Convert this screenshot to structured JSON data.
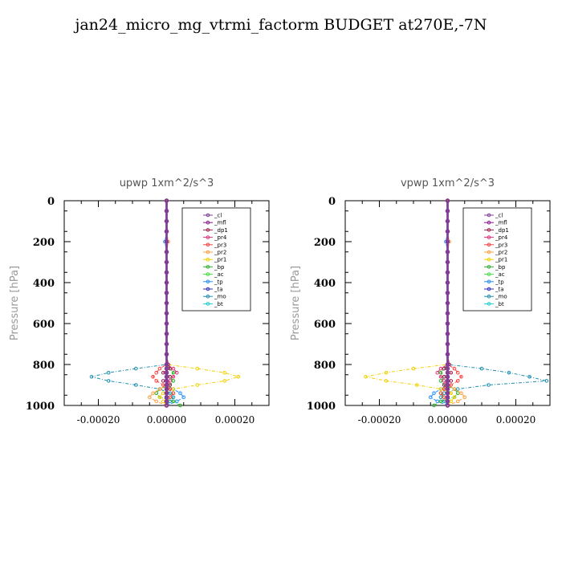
{
  "title": "jan24_micro_mg_vtrmi_factorm  BUDGET at270E,-7N",
  "chart_data": [
    {
      "type": "line",
      "title": "upwp   1xm^2/s^3",
      "ylabel": "Pressure [hPa]",
      "xlabel": "",
      "xlim": [
        -0.0003,
        0.0003
      ],
      "ylim": [
        1000,
        0
      ],
      "xticks": [
        "-0.00020",
        "0.00000",
        "0.00020"
      ],
      "yticks": [
        "0",
        "200",
        "400",
        "600",
        "800",
        "1000"
      ],
      "legend_position": "top-right",
      "y": [
        0,
        50,
        100,
        150,
        200,
        250,
        300,
        350,
        400,
        450,
        500,
        550,
        600,
        650,
        700,
        750,
        800,
        820,
        840,
        860,
        880,
        900,
        920,
        940,
        960,
        980,
        1000
      ],
      "series": [
        {
          "name": "_cl",
          "color": "#7f3f98",
          "values": [
            0,
            0,
            0,
            0,
            0,
            0,
            0,
            0,
            0,
            0,
            0,
            0,
            0,
            0,
            0,
            0,
            0,
            0,
            0,
            0,
            0,
            0,
            0,
            0,
            0,
            0,
            0
          ]
        },
        {
          "name": "_mfl",
          "color": "#8b1a8b",
          "values": [
            0,
            0,
            0,
            0,
            0,
            0,
            0,
            0,
            0,
            0,
            0,
            0,
            0,
            0,
            0,
            0,
            0,
            0,
            0,
            0,
            0,
            0,
            0,
            0,
            0,
            0,
            0
          ]
        },
        {
          "name": "_dp1",
          "color": "#a0204a",
          "values": [
            0,
            0,
            0,
            0,
            0,
            0,
            0,
            0,
            0,
            0,
            0,
            0,
            0,
            0,
            0,
            0,
            5e-06,
            1e-05,
            -1e-05,
            1e-05,
            -1e-05,
            1e-05,
            0,
            0,
            0,
            0,
            0
          ]
        },
        {
          "name": "_pr4",
          "color": "#e0307a",
          "values": [
            0,
            0,
            0,
            0,
            0,
            0,
            0,
            0,
            0,
            0,
            0,
            0,
            0,
            0,
            0,
            0,
            0,
            2e-05,
            3e-05,
            2e-05,
            1e-05,
            0,
            0,
            0,
            0,
            0,
            0
          ]
        },
        {
          "name": "_pr3",
          "color": "#ff4040",
          "values": [
            0,
            0,
            0,
            0,
            0,
            0,
            0,
            0,
            0,
            0,
            0,
            0,
            0,
            0,
            0,
            0,
            0,
            -2e-05,
            -3e-05,
            -4e-05,
            -3e-05,
            -1e-05,
            1e-05,
            2e-05,
            1e-05,
            0,
            0
          ]
        },
        {
          "name": "_pr2",
          "color": "#ffa040",
          "values": [
            0,
            0,
            0,
            0,
            5e-06,
            0,
            0,
            0,
            0,
            0,
            0,
            0,
            0,
            0,
            0,
            0,
            0,
            0,
            0,
            0,
            0,
            0,
            -2e-05,
            -4e-05,
            -5e-05,
            -3e-05,
            0
          ]
        },
        {
          "name": "_pr1",
          "color": "#f0d000",
          "values": [
            0,
            0,
            0,
            0,
            0,
            0,
            0,
            0,
            0,
            0,
            0,
            0,
            0,
            0,
            0,
            0,
            0,
            9e-05,
            0.00017,
            0.00021,
            0.00017,
            9e-05,
            2e-05,
            -1e-05,
            -2e-05,
            -1e-05,
            0
          ]
        },
        {
          "name": "_bp",
          "color": "#30b030",
          "values": [
            0,
            0,
            0,
            0,
            0,
            0,
            0,
            0,
            0,
            0,
            0,
            0,
            0,
            0,
            0,
            0,
            0,
            1e-05,
            2e-05,
            1e-05,
            2e-05,
            1e-05,
            -2e-05,
            -3e-05,
            -2e-05,
            2e-05,
            4e-05
          ]
        },
        {
          "name": "_ac",
          "color": "#40e040",
          "values": [
            0,
            0,
            0,
            0,
            0,
            0,
            0,
            0,
            0,
            0,
            0,
            0,
            0,
            0,
            0,
            0,
            0,
            0,
            0,
            0,
            0,
            0,
            1e-05,
            2e-05,
            1e-05,
            0,
            0
          ]
        },
        {
          "name": "_tp",
          "color": "#2090ff",
          "values": [
            0,
            0,
            0,
            0,
            -5e-06,
            0,
            0,
            0,
            0,
            0,
            0,
            0,
            0,
            0,
            0,
            0,
            0,
            0,
            0,
            0,
            0,
            0,
            2e-05,
            4e-05,
            5e-05,
            3e-05,
            0
          ]
        },
        {
          "name": "_ta",
          "color": "#3030c0",
          "values": [
            0,
            0,
            0,
            0,
            0,
            0,
            0,
            0,
            0,
            0,
            0,
            0,
            0,
            0,
            0,
            0,
            0,
            0,
            0,
            0,
            0,
            0,
            0,
            0,
            0,
            0,
            0
          ]
        },
        {
          "name": "_mo",
          "color": "#2090b0",
          "values": [
            0,
            0,
            0,
            0,
            0,
            0,
            0,
            0,
            0,
            0,
            0,
            0,
            0,
            0,
            0,
            0,
            0,
            -9e-05,
            -0.00017,
            -0.00022,
            -0.00017,
            -9e-05,
            -2e-05,
            1e-05,
            2e-05,
            1e-05,
            0
          ]
        },
        {
          "name": "_bt",
          "color": "#20d0d0",
          "values": [
            0,
            0,
            0,
            0,
            0,
            0,
            0,
            0,
            0,
            0,
            0,
            0,
            0,
            0,
            0,
            0,
            0,
            0,
            0,
            0,
            0,
            0,
            0,
            0,
            0,
            0,
            0
          ]
        }
      ]
    },
    {
      "type": "line",
      "title": "vpwp   1xm^2/s^3",
      "ylabel": "Pressure [hPa]",
      "xlabel": "",
      "xlim": [
        -0.0003,
        0.0003
      ],
      "ylim": [
        1000,
        0
      ],
      "xticks": [
        "-0.00020",
        "0.00000",
        "0.00020"
      ],
      "yticks": [
        "0",
        "200",
        "400",
        "600",
        "800",
        "1000"
      ],
      "legend_position": "top-right",
      "y": [
        0,
        50,
        100,
        150,
        200,
        250,
        300,
        350,
        400,
        450,
        500,
        550,
        600,
        650,
        700,
        750,
        800,
        820,
        840,
        860,
        880,
        900,
        920,
        940,
        960,
        980,
        1000
      ],
      "series": [
        {
          "name": "_cl",
          "color": "#7f3f98",
          "values": [
            0,
            0,
            0,
            0,
            0,
            0,
            0,
            0,
            0,
            0,
            0,
            0,
            0,
            0,
            0,
            0,
            0,
            0,
            0,
            0,
            0,
            0,
            0,
            0,
            0,
            0,
            0
          ]
        },
        {
          "name": "_mfl",
          "color": "#8b1a8b",
          "values": [
            0,
            0,
            0,
            0,
            0,
            0,
            0,
            0,
            0,
            0,
            0,
            0,
            0,
            0,
            0,
            0,
            0,
            0,
            0,
            0,
            0,
            0,
            0,
            0,
            0,
            0,
            0
          ]
        },
        {
          "name": "_dp1",
          "color": "#a0204a",
          "values": [
            0,
            0,
            0,
            0,
            0,
            0,
            0,
            0,
            0,
            0,
            0,
            0,
            0,
            0,
            0,
            0,
            5e-06,
            -1e-05,
            1e-05,
            -1e-05,
            1e-05,
            -1e-05,
            0,
            0,
            0,
            0,
            0
          ]
        },
        {
          "name": "_pr4",
          "color": "#e0307a",
          "values": [
            0,
            0,
            0,
            0,
            0,
            0,
            0,
            0,
            0,
            0,
            0,
            0,
            0,
            0,
            0,
            0,
            0,
            -2e-05,
            -3e-05,
            -2e-05,
            -1e-05,
            0,
            0,
            0,
            0,
            0,
            0
          ]
        },
        {
          "name": "_pr3",
          "color": "#ff4040",
          "values": [
            0,
            0,
            0,
            0,
            0,
            0,
            0,
            0,
            0,
            0,
            0,
            0,
            0,
            0,
            0,
            0,
            0,
            2e-05,
            3e-05,
            4e-05,
            3e-05,
            1e-05,
            -1e-05,
            -2e-05,
            -1e-05,
            0,
            0
          ]
        },
        {
          "name": "_pr2",
          "color": "#ffa040",
          "values": [
            0,
            0,
            0,
            0,
            5e-06,
            0,
            0,
            0,
            0,
            0,
            0,
            0,
            0,
            0,
            0,
            0,
            0,
            0,
            0,
            0,
            0,
            0,
            2e-05,
            4e-05,
            5e-05,
            3e-05,
            0
          ]
        },
        {
          "name": "_pr1",
          "color": "#f0d000",
          "values": [
            0,
            0,
            0,
            0,
            0,
            0,
            0,
            0,
            0,
            0,
            0,
            0,
            0,
            0,
            0,
            0,
            0,
            -0.0001,
            -0.00018,
            -0.00024,
            -0.00018,
            -9e-05,
            -2e-05,
            1e-05,
            2e-05,
            1e-05,
            0
          ]
        },
        {
          "name": "_bp",
          "color": "#30b030",
          "values": [
            0,
            0,
            0,
            0,
            0,
            0,
            0,
            0,
            0,
            0,
            0,
            0,
            0,
            0,
            0,
            0,
            0,
            -1e-05,
            -2e-05,
            -1e-05,
            -2e-05,
            -1e-05,
            2e-05,
            3e-05,
            2e-05,
            -2e-05,
            -4e-05
          ]
        },
        {
          "name": "_ac",
          "color": "#40e040",
          "values": [
            0,
            0,
            0,
            0,
            0,
            0,
            0,
            0,
            0,
            0,
            0,
            0,
            0,
            0,
            0,
            0,
            0,
            0,
            0,
            0,
            0,
            0,
            -1e-05,
            -2e-05,
            -1e-05,
            0,
            0
          ]
        },
        {
          "name": "_tp",
          "color": "#2090ff",
          "values": [
            0,
            0,
            0,
            0,
            -5e-06,
            0,
            0,
            0,
            0,
            0,
            0,
            0,
            0,
            0,
            0,
            0,
            0,
            0,
            0,
            0,
            0,
            0,
            -2e-05,
            -4e-05,
            -5e-05,
            -3e-05,
            0
          ]
        },
        {
          "name": "_ta",
          "color": "#3030c0",
          "values": [
            0,
            0,
            0,
            0,
            0,
            0,
            0,
            0,
            0,
            0,
            0,
            0,
            0,
            0,
            0,
            0,
            0,
            0,
            0,
            0,
            0,
            0,
            0,
            0,
            0,
            0,
            0
          ]
        },
        {
          "name": "_mo",
          "color": "#2090b0",
          "values": [
            0,
            0,
            0,
            0,
            0,
            0,
            0,
            0,
            0,
            0,
            0,
            0,
            0,
            0,
            0,
            0,
            0,
            0.0001,
            0.00018,
            0.00024,
            0.00029,
            0.00012,
            3e-05,
            -1e-05,
            -2e-05,
            -1e-05,
            0
          ]
        },
        {
          "name": "_bt",
          "color": "#20d0d0",
          "values": [
            0,
            0,
            0,
            0,
            0,
            0,
            0,
            0,
            0,
            0,
            0,
            0,
            0,
            0,
            0,
            0,
            0,
            0,
            0,
            0,
            0,
            0,
            0,
            0,
            0,
            0,
            0
          ]
        }
      ]
    }
  ]
}
